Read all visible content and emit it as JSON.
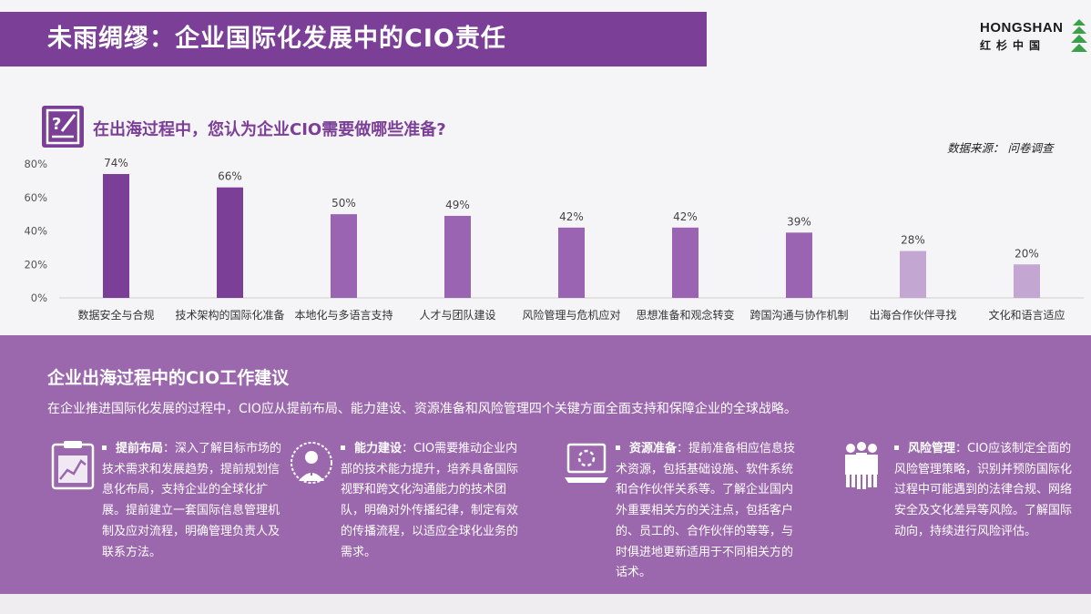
{
  "header": {
    "title": "未雨绸缪：企业国际化发展中的CIO责任"
  },
  "logo": {
    "name": "HONGSHAN",
    "cn": "红杉中国",
    "colors": {
      "mark": "#3aa14a"
    }
  },
  "question": {
    "text": "在出海过程中，您认为企业CIO需要做哪些准备?",
    "icon": "question-pencil-icon"
  },
  "source": "数据来源： 问卷调查",
  "colors": {
    "accent": "#7b3f98",
    "panel": "#9b68ad"
  },
  "chart_data": {
    "type": "bar",
    "categories": [
      "数据安全与合规",
      "技术架构的国际化准备",
      "本地化与多语言支持",
      "人才与团队建设",
      "风险管理与危机应对",
      "思想准备和观念转变",
      "跨国沟通与协作机制",
      "出海合作伙伴寻找",
      "文化和语言适应"
    ],
    "values": [
      74,
      66,
      50,
      49,
      42,
      42,
      39,
      28,
      20
    ],
    "value_labels": [
      "74%",
      "66%",
      "50%",
      "49%",
      "42%",
      "42%",
      "39%",
      "28%",
      "20%"
    ],
    "bar_colors": [
      "#7b3f98",
      "#7b3f98",
      "#9a64b2",
      "#9a64b2",
      "#9a64b2",
      "#9a64b2",
      "#9a64b2",
      "#c4a6d2",
      "#c4a6d2"
    ],
    "yticks": [
      "0%",
      "20%",
      "40%",
      "60%",
      "80%"
    ],
    "ylim": [
      0,
      80
    ],
    "grid": false
  },
  "recommendations": {
    "title": "企业出海过程中的CIO工作建议",
    "desc": "在企业推进国际化发展的过程中，CIO应从提前布局、能力建设、资源准备和风险管理四个关键方面全面支持和保障企业的全球战略。",
    "items": [
      {
        "lead": "提前布局",
        "body": "：深入了解目标市场的技术需求和发展趋势，提前规划信息化布局，支持企业的全球化扩展。提前建立一套国际信息管理机制及应对流程，明确管理负责人及联系方法。",
        "icon": "clipboard-chart-icon"
      },
      {
        "lead": "能力建设",
        "body": "：CIO需要推动企业内部的技术能力提升，培养具备国际视野和跨文化沟通能力的技术团队，明确对外传播纪律，制定有效的传播流程，以适应全球化业务的需求。",
        "icon": "globe-person-icon"
      },
      {
        "lead": "资源准备",
        "body": "：提前准备相应信息技术资源，包括基础设施、软件系统和合作伙伴关系等。了解企业国内外重要相关方的关注点，包括客户的、员工的、合作伙伴的等等，与时俱进地更新适用于不同相关方的话术。",
        "icon": "laptop-icon"
      },
      {
        "lead": "风险管理",
        "body": "：CIO应该制定全面的风险管理策略，识别并预防国际化过程中可能遇到的法律合规、网络安全及文化差异等风险。了解国际动向，持续进行风险评估。",
        "icon": "team-people-icon"
      }
    ]
  }
}
